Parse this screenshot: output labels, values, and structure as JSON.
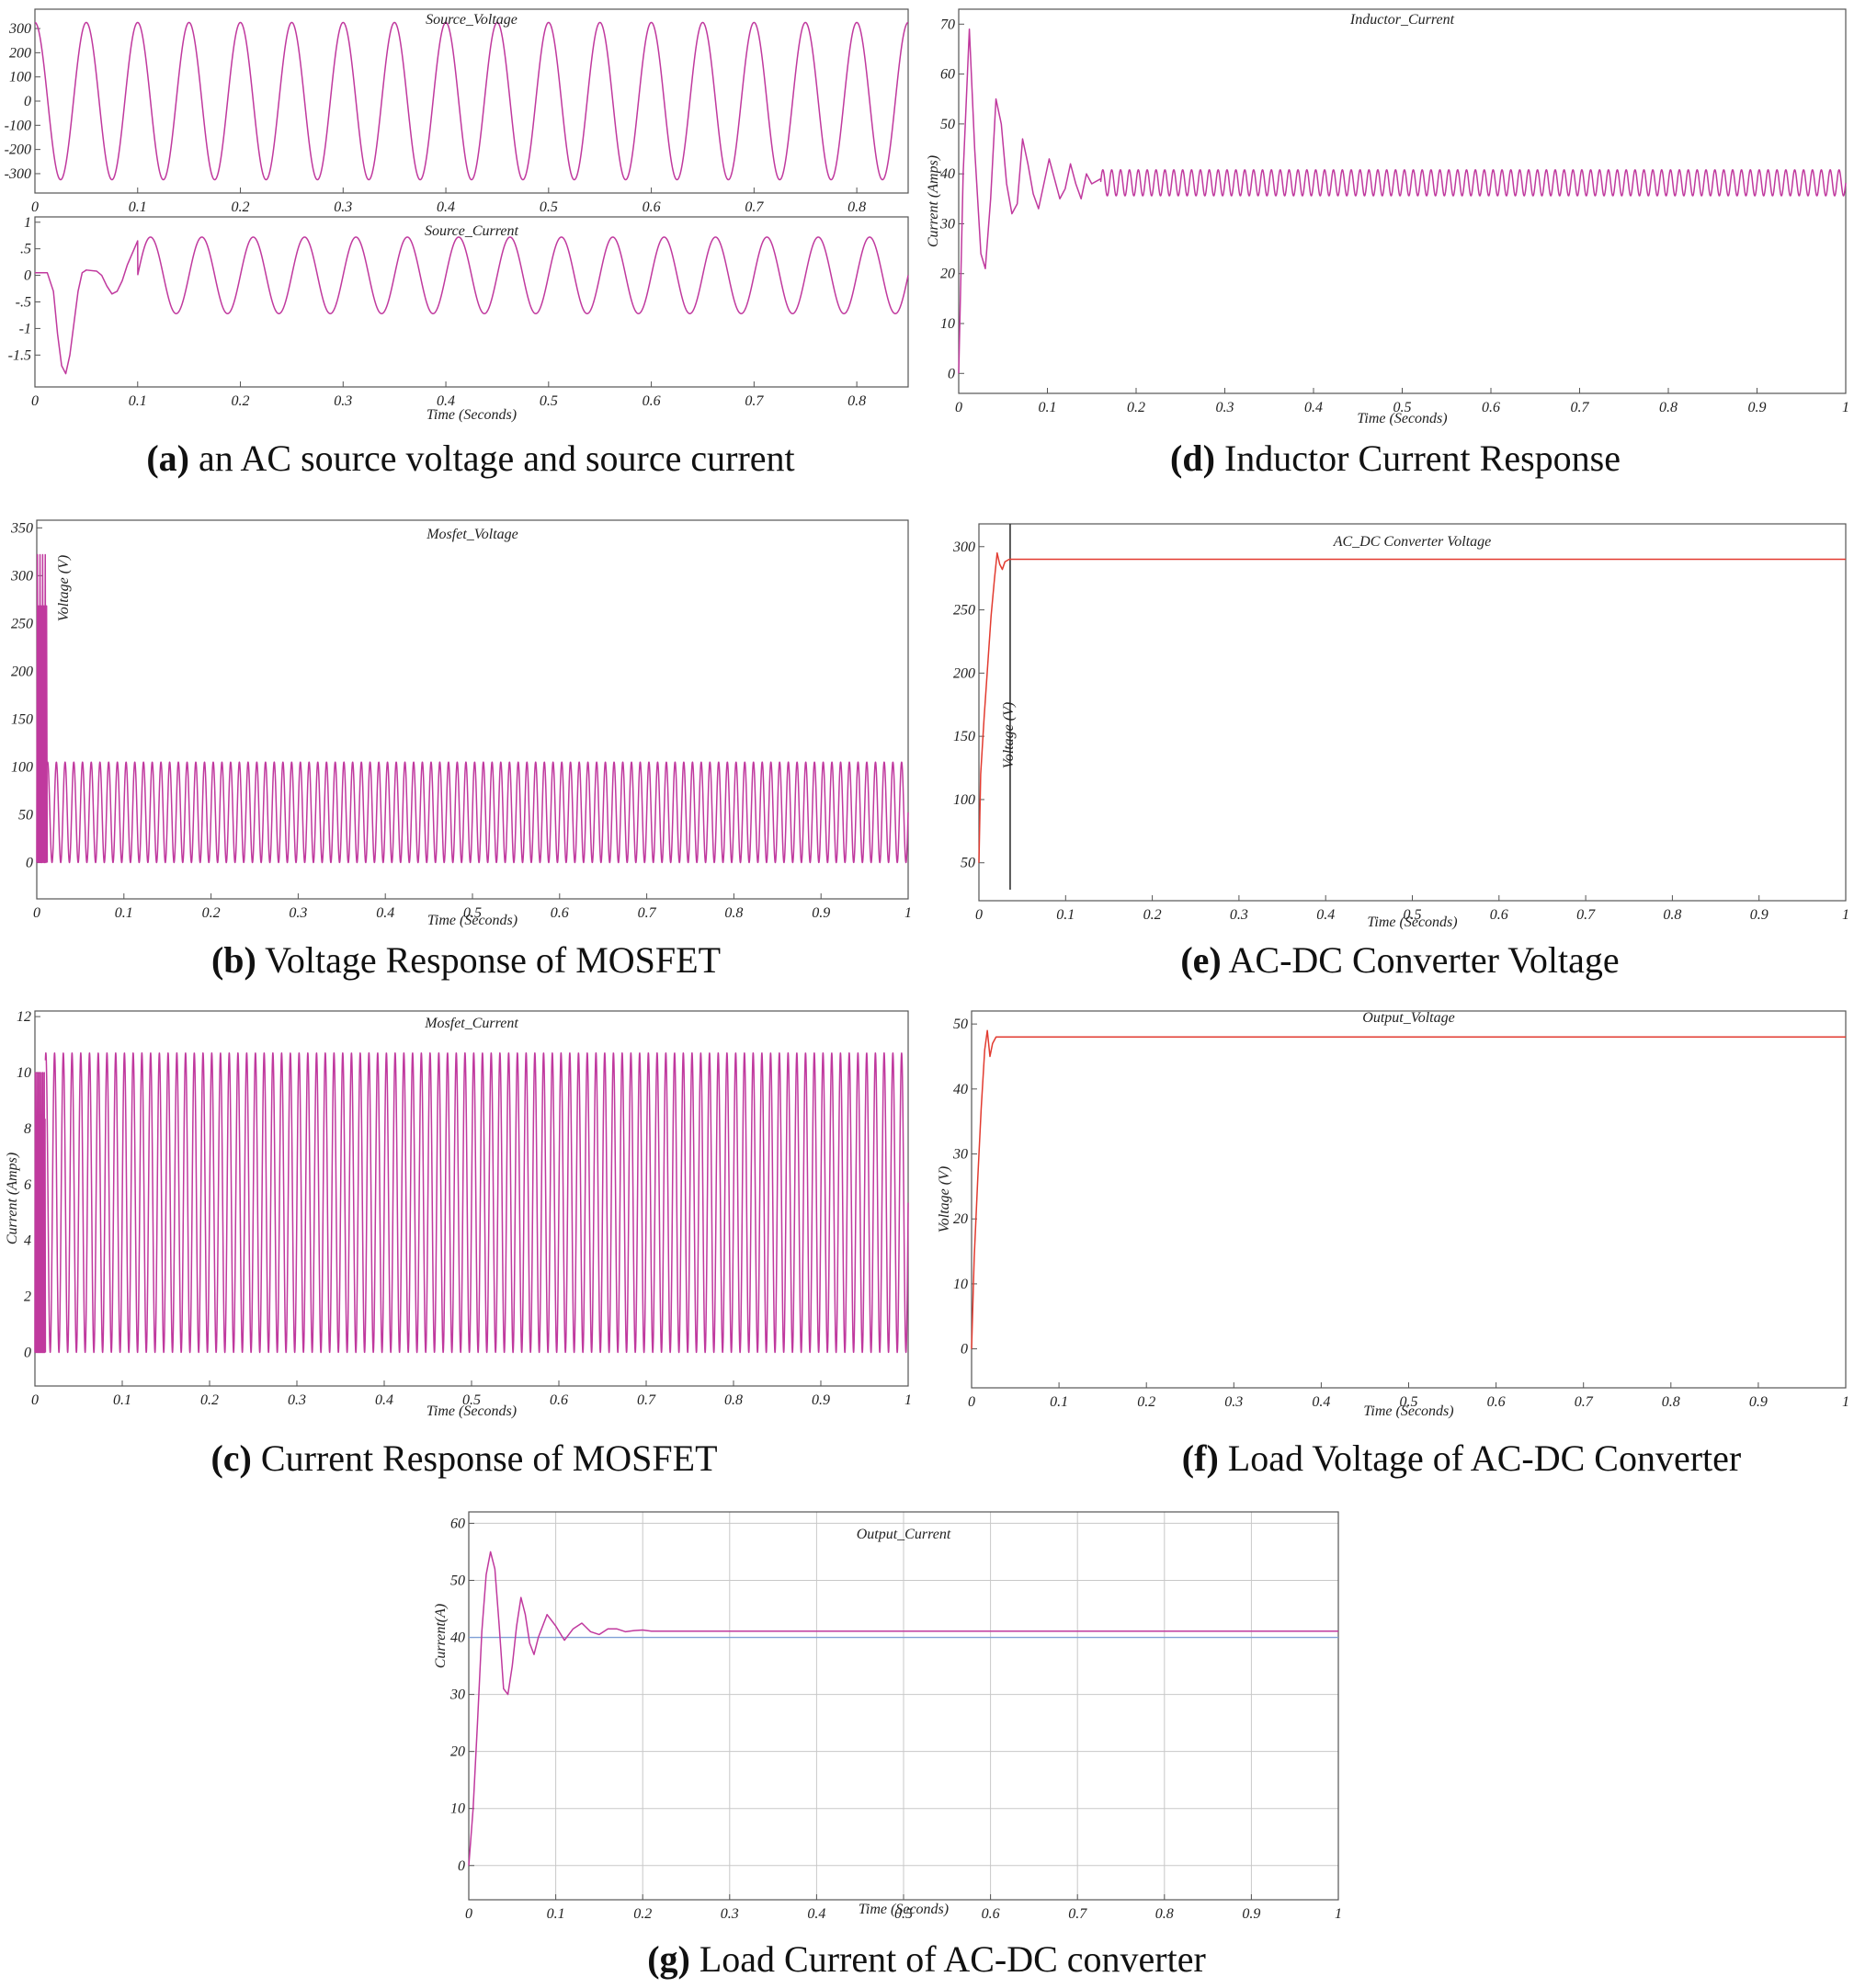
{
  "palette": {
    "magenta": "#c0399e",
    "red": "#e23b30",
    "frame": "#555555",
    "marker": "#333333"
  },
  "chart_data": [
    {
      "id": "a1",
      "type": "line",
      "title": "Source_Voltage",
      "xlabel": "",
      "ylabel": "",
      "xlim": [
        0,
        0.85
      ],
      "ylim": [
        -380,
        380
      ],
      "xticks": [
        0,
        0.1,
        0.2,
        0.3,
        0.4,
        0.5,
        0.6,
        0.7,
        0.8
      ],
      "xtick_labels": [
        "0",
        "0.1",
        "0.2",
        "0.3",
        "0.4",
        "0.5",
        "0.6",
        "0.7",
        "0.8"
      ],
      "yticks": [
        300,
        200,
        100,
        0,
        -100,
        -200,
        -300
      ],
      "ytick_labels": [
        "300",
        "200",
        "100",
        "0",
        "-100",
        "-200",
        "-300"
      ],
      "grid": false,
      "series": [
        {
          "kind": "sine",
          "amplitude": 325,
          "frequency_hz": 20,
          "phase_deg": 90
        }
      ]
    },
    {
      "id": "a2",
      "type": "line",
      "title": "Source_Current",
      "xlabel": "Time (Seconds)",
      "ylabel": "",
      "xlim": [
        0,
        0.85
      ],
      "ylim": [
        -2.1,
        1.1
      ],
      "xticks": [
        0,
        0.1,
        0.2,
        0.3,
        0.4,
        0.5,
        0.6,
        0.7,
        0.8
      ],
      "xtick_labels": [
        "0",
        "0.1",
        "0.2",
        "0.3",
        "0.4",
        "0.5",
        "0.6",
        "0.7",
        "0.8"
      ],
      "yticks": [
        1,
        0.5,
        0,
        -0.5,
        -1,
        -1.5
      ],
      "ytick_labels": [
        "1",
        ".5",
        "0",
        "-.5",
        "-1",
        "-1.5"
      ],
      "grid": false,
      "series": [
        {
          "kind": "points",
          "x": [
            0,
            0.012,
            0.018,
            0.022,
            0.026,
            0.03,
            0.034,
            0.038,
            0.042,
            0.046,
            0.05,
            0.06,
            0.065,
            0.07,
            0.075,
            0.08,
            0.085,
            0.09,
            0.1
          ],
          "y": [
            0.05,
            0.05,
            -0.3,
            -1.1,
            -1.7,
            -1.85,
            -1.5,
            -0.9,
            -0.3,
            0.05,
            0.1,
            0.08,
            0.0,
            -0.2,
            -0.35,
            -0.3,
            -0.1,
            0.2,
            0.65
          ],
          "then": {
            "kind": "sine",
            "amplitude": 0.72,
            "frequency_hz": 20,
            "phase_deg": 0,
            "from_x": 0.1
          }
        }
      ]
    },
    {
      "id": "d",
      "type": "line",
      "title": "Inductor_Current",
      "xlabel": "Time (Seconds)",
      "ylabel": "Current (Amps)",
      "xlim": [
        0,
        1
      ],
      "ylim": [
        -4,
        73
      ],
      "xticks": [
        0,
        0.1,
        0.2,
        0.3,
        0.4,
        0.5,
        0.6,
        0.7,
        0.8,
        0.9,
        1
      ],
      "xtick_labels": [
        "0",
        "0.1",
        "0.2",
        "0.3",
        "0.4",
        "0.5",
        "0.6",
        "0.7",
        "0.8",
        "0.9",
        "1"
      ],
      "yticks": [
        70,
        60,
        50,
        40,
        30,
        20,
        10,
        0
      ],
      "ytick_labels": [
        "70",
        "60",
        "50",
        "40",
        "30",
        "20",
        "10",
        "0"
      ],
      "grid": false,
      "series": [
        {
          "kind": "points",
          "x": [
            0,
            0.005,
            0.012,
            0.018,
            0.025,
            0.03,
            0.036,
            0.042,
            0.048,
            0.054,
            0.06,
            0.066,
            0.072,
            0.078,
            0.084,
            0.09,
            0.096,
            0.102,
            0.108,
            0.114,
            0.12,
            0.126,
            0.132,
            0.138,
            0.144,
            0.15,
            0.16
          ],
          "y": [
            0,
            40,
            69,
            45,
            24,
            21,
            35,
            55,
            50,
            38,
            32,
            34,
            47,
            42,
            36,
            33,
            38,
            43,
            39,
            35,
            37,
            42,
            38,
            35,
            40,
            38,
            39
          ],
          "then": {
            "kind": "sine",
            "center": 38.2,
            "amplitude": 2.6,
            "frequency_hz": 100,
            "phase_deg": 0,
            "from_x": 0.16
          }
        }
      ]
    },
    {
      "id": "b",
      "type": "line",
      "title": "Mosfet_Voltage",
      "xlabel": "Time (Seconds)",
      "ylabel": "Voltage (V)",
      "xlim": [
        0,
        1
      ],
      "ylim": [
        -38,
        358
      ],
      "xticks": [
        0,
        0.1,
        0.2,
        0.3,
        0.4,
        0.5,
        0.6,
        0.7,
        0.8,
        0.9,
        1
      ],
      "xtick_labels": [
        "0",
        "0.1",
        "0.2",
        "0.3",
        "0.4",
        "0.5",
        "0.6",
        "0.7",
        "0.8",
        "0.9",
        "1"
      ],
      "yticks": [
        350,
        300,
        250,
        200,
        150,
        100,
        50,
        0
      ],
      "ytick_labels": [
        "350",
        "300",
        "250",
        "200",
        "150",
        "100",
        "50",
        "0"
      ],
      "grid": false,
      "series": [
        {
          "kind": "burst",
          "x_end": 0.012,
          "max": 322,
          "cycles": 8
        },
        {
          "kind": "sine",
          "center": 52.5,
          "amplitude": 52.5,
          "frequency_hz": 100,
          "phase_deg": 0,
          "from_x": 0.012
        }
      ]
    },
    {
      "id": "e",
      "type": "line",
      "title": "AC_DC Converter Voltage",
      "xlabel": "Time (Seconds)",
      "ylabel": "Voltage (V)",
      "xlim": [
        0,
        1
      ],
      "ylim": [
        20,
        318
      ],
      "xticks": [
        0,
        0.1,
        0.2,
        0.3,
        0.4,
        0.5,
        0.6,
        0.7,
        0.8,
        0.9,
        1
      ],
      "xtick_labels": [
        "0",
        "0.1",
        "0.2",
        "0.3",
        "0.4",
        "0.5",
        "0.6",
        "0.7",
        "0.8",
        "0.9",
        "1"
      ],
      "yticks": [
        300,
        250,
        200,
        150,
        100,
        50
      ],
      "ytick_labels": [
        "300",
        "250",
        "200",
        "150",
        "100",
        "50"
      ],
      "grid": false,
      "marker_x": 0.036,
      "series": [
        {
          "kind": "points",
          "x": [
            0,
            0.002,
            0.006,
            0.01,
            0.014,
            0.018,
            0.021,
            0.024,
            0.027,
            0.03,
            0.035,
            0.05,
            1
          ],
          "y": [
            50,
            120,
            165,
            205,
            245,
            275,
            295,
            286,
            282,
            288,
            290,
            290,
            290
          ]
        }
      ]
    },
    {
      "id": "c",
      "type": "line",
      "title": "Mosfet_Current",
      "xlabel": "Time (Seconds)",
      "ylabel": "Current (Amps)",
      "xlim": [
        0,
        1
      ],
      "ylim": [
        -1.2,
        12.2
      ],
      "xticks": [
        0,
        0.1,
        0.2,
        0.3,
        0.4,
        0.5,
        0.6,
        0.7,
        0.8,
        0.9,
        1
      ],
      "xtick_labels": [
        "0",
        "0.1",
        "0.2",
        "0.3",
        "0.4",
        "0.5",
        "0.6",
        "0.7",
        "0.8",
        "0.9",
        "1"
      ],
      "yticks": [
        12,
        10,
        8,
        6,
        4,
        2,
        0
      ],
      "ytick_labels": [
        "12",
        "10",
        "8",
        "6",
        "4",
        "2",
        "0"
      ],
      "grid": false,
      "series": [
        {
          "kind": "burst",
          "x_end": 0.012,
          "max": 10,
          "cycles": 14
        },
        {
          "kind": "sine",
          "center": 5.35,
          "amplitude": 5.35,
          "frequency_hz": 100,
          "phase_deg": 0,
          "from_x": 0.012
        }
      ]
    },
    {
      "id": "f",
      "type": "line",
      "title": "Output_Voltage",
      "xlabel": "Time (Seconds)",
      "ylabel": "Voltage (V)",
      "xlim": [
        0,
        1
      ],
      "ylim": [
        -6,
        52
      ],
      "xticks": [
        0,
        0.1,
        0.2,
        0.3,
        0.4,
        0.5,
        0.6,
        0.7,
        0.8,
        0.9,
        1
      ],
      "xtick_labels": [
        "0",
        "0.1",
        "0.2",
        "0.3",
        "0.4",
        "0.5",
        "0.6",
        "0.7",
        "0.8",
        "0.9",
        "1"
      ],
      "yticks": [
        50,
        40,
        30,
        20,
        10,
        0
      ],
      "ytick_labels": [
        "50",
        "40",
        "30",
        "20",
        "10",
        "0"
      ],
      "grid": false,
      "series": [
        {
          "kind": "points",
          "x": [
            0,
            0.003,
            0.007,
            0.011,
            0.015,
            0.018,
            0.021,
            0.024,
            0.028,
            0.035,
            1
          ],
          "y": [
            0,
            14,
            26,
            37,
            46,
            49,
            45,
            47,
            48,
            48,
            48
          ]
        }
      ]
    },
    {
      "id": "g",
      "type": "line",
      "title": "Output_Current",
      "xlabel": "Time (Seconds)",
      "ylabel": "Current(A)",
      "xlim": [
        0,
        1
      ],
      "ylim": [
        -6,
        62
      ],
      "xticks": [
        0,
        0.1,
        0.2,
        0.3,
        0.4,
        0.5,
        0.6,
        0.7,
        0.8,
        0.9,
        1
      ],
      "xtick_labels": [
        "0",
        "0.1",
        "0.2",
        "0.3",
        "0.4",
        "0.5",
        "0.6",
        "0.7",
        "0.8",
        "0.9",
        "1"
      ],
      "yticks": [
        60,
        50,
        40,
        30,
        20,
        10,
        0
      ],
      "ytick_labels": [
        "60",
        "50",
        "40",
        "30",
        "20",
        "10",
        "0"
      ],
      "grid": true,
      "reference_y": 40,
      "series": [
        {
          "kind": "points",
          "x": [
            0,
            0.005,
            0.01,
            0.015,
            0.02,
            0.025,
            0.03,
            0.035,
            0.04,
            0.045,
            0.05,
            0.055,
            0.06,
            0.065,
            0.07,
            0.075,
            0.08,
            0.09,
            0.1,
            0.11,
            0.12,
            0.13,
            0.14,
            0.15,
            0.16,
            0.17,
            0.18,
            0.19,
            0.2,
            0.21,
            0.22,
            1
          ],
          "y": [
            0,
            10,
            25,
            41,
            51,
            55,
            52,
            42,
            31,
            30,
            35,
            42,
            47,
            44,
            39,
            37,
            40,
            44,
            42,
            39.5,
            41.5,
            42.5,
            41,
            40.5,
            41.5,
            41.5,
            41,
            41.2,
            41.3,
            41.1,
            41.1,
            41.1
          ]
        }
      ]
    }
  ],
  "captions": [
    {
      "id": "a",
      "letter": "(a)",
      "text": " an AC source voltage and source current"
    },
    {
      "id": "d",
      "letter": "(d)",
      "text": " Inductor Current Response"
    },
    {
      "id": "b",
      "letter": "(b)",
      "text": " Voltage Response of MOSFET"
    },
    {
      "id": "e",
      "letter": "(e)",
      "text": " AC-DC Converter Voltage"
    },
    {
      "id": "c",
      "letter": "(c)",
      "text": " Current Response of MOSFET"
    },
    {
      "id": "f",
      "letter": "(f)",
      "text": " Load Voltage of AC-DC Converter"
    },
    {
      "id": "g",
      "letter": "(g)",
      "text": " Load Current of AC-DC converter"
    }
  ]
}
